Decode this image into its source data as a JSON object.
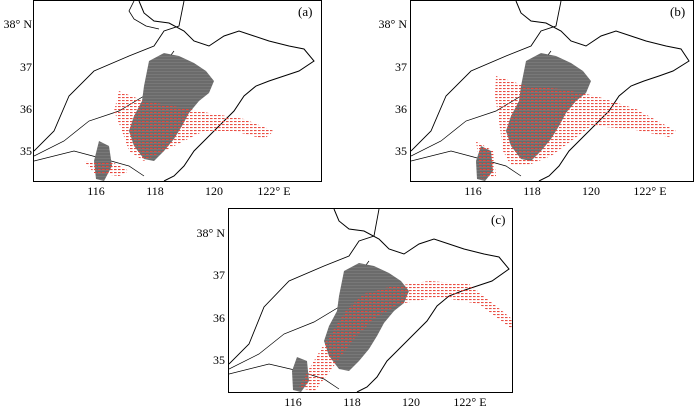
{
  "panels": [
    {
      "id": "a",
      "label": "(a)"
    },
    {
      "id": "b",
      "label": "(b)"
    },
    {
      "id": "c",
      "label": "(c)"
    }
  ],
  "axes": {
    "y_ticks": [
      "38° N",
      "37",
      "36",
      "35"
    ],
    "x_ticks": [
      "116",
      "118",
      "120",
      "122° E"
    ]
  },
  "colors": {
    "land_fill": "#6b6b6b",
    "hatch": "#e8453a",
    "coast": "#000000"
  }
}
